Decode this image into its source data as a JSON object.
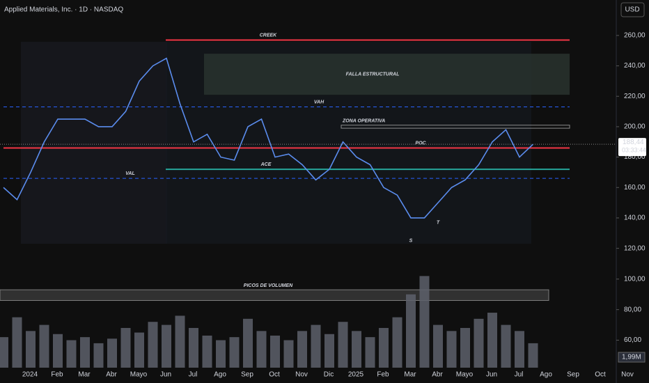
{
  "header": {
    "title": "Applied Materials, Inc. · 1D · NASDAQ",
    "currency": "USD"
  },
  "chart_data": [
    {
      "type": "line",
      "color": "#5b8def",
      "categories": [
        "2024",
        null,
        "Feb",
        null,
        "Mar",
        null,
        "Abr",
        null,
        "Mayo",
        null,
        "Jun",
        null,
        "Jul",
        null,
        "Ago",
        null,
        "Sep",
        null,
        "Oct",
        null,
        "Nov",
        null,
        "Dic",
        null,
        "2025",
        null,
        "Feb",
        null,
        "Mar",
        null,
        "Abr",
        null,
        "Mayo",
        null,
        "Jun",
        null,
        "Jul",
        null,
        "Ago",
        null,
        "Sep",
        null,
        "Oct",
        null,
        "Nov",
        null
      ],
      "values": [
        160,
        152,
        170,
        190,
        205,
        205,
        205,
        200,
        200,
        210,
        230,
        240,
        245,
        215,
        190,
        195,
        180,
        178,
        200,
        205,
        180,
        182,
        175,
        165,
        172,
        190,
        180,
        175,
        160,
        155,
        140,
        140,
        150,
        160,
        165,
        175,
        190,
        198,
        180,
        188.44,
        null,
        null,
        null,
        null,
        null,
        null
      ],
      "ylim": [
        107,
        265
      ],
      "yticks": [
        {
          "value": 120,
          "label": "120,00"
        },
        {
          "value": 140,
          "label": "140,00"
        },
        {
          "value": 160,
          "label": "160,00"
        },
        {
          "value": 180,
          "label": "180,00"
        },
        {
          "value": 200,
          "label": "200,00"
        },
        {
          "value": 220,
          "label": "220,00"
        },
        {
          "value": 240,
          "label": "240,00"
        },
        {
          "value": 260,
          "label": "260,00"
        }
      ],
      "last_price": {
        "value": 188.44,
        "label": "188,44"
      },
      "countdown": "03:33:44",
      "levels": [
        {
          "label": "CREEK",
          "value": 257,
          "color": "#f23645",
          "dashed": false
        },
        {
          "label": "VAH",
          "value": 213,
          "color": "#2962ff",
          "dashed": true
        },
        {
          "label": "POC",
          "value": 186,
          "color": "#f23645",
          "dashed": false
        },
        {
          "label": "ACE",
          "value": 172,
          "color": "#26a69a",
          "dashed": false
        },
        {
          "label": "VAL",
          "value": 166,
          "color": "#2962ff",
          "dashed": true
        }
      ],
      "zones": [
        {
          "label": "FALLA ESTRUCTURAL",
          "range": [
            221,
            248
          ],
          "color": "#f5e663"
        },
        {
          "label": "ZONA OPERATIVA",
          "range": [
            199,
            201
          ],
          "color": "#f23645"
        }
      ],
      "points": [
        {
          "label": "S",
          "index": 30,
          "value": 125
        },
        {
          "label": "T",
          "index": 32,
          "value": 137
        }
      ]
    },
    {
      "type": "bar",
      "color": "#5d606b",
      "values": [
        62,
        75,
        66,
        70,
        64,
        60,
        62,
        58,
        61,
        68,
        65,
        72,
        70,
        76,
        68,
        63,
        60,
        62,
        74,
        66,
        63,
        60,
        66,
        70,
        64,
        72,
        66,
        62,
        68,
        75,
        90,
        102,
        70,
        66,
        68,
        74,
        78,
        70,
        66,
        58,
        null,
        null,
        null,
        null,
        null,
        null
      ],
      "ylim": [
        42,
        104
      ],
      "yticks": [
        {
          "value": 60,
          "label": "60,00"
        },
        {
          "value": 80,
          "label": "80,00"
        },
        {
          "value": 100,
          "label": "100,00"
        }
      ],
      "zone": {
        "label": "PICOS DE VOLUMEN",
        "range": [
          86,
          93
        ]
      },
      "volume_label": "1,99M"
    }
  ]
}
